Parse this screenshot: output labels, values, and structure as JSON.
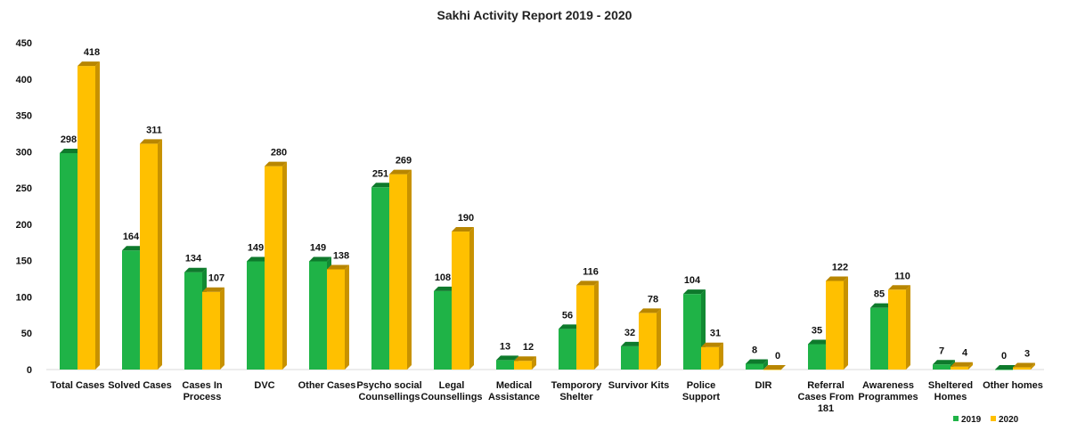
{
  "chart_data": {
    "type": "bar",
    "title": "Sakhi Activity Report 2019 - 2020",
    "xlabel": "",
    "ylabel": "",
    "ylim": [
      0,
      450
    ],
    "yticks": [
      0,
      50,
      100,
      150,
      200,
      250,
      300,
      350,
      400,
      450
    ],
    "grid": false,
    "legend_position": "bottom-right",
    "categories": [
      [
        "Total Cases"
      ],
      [
        "Solved Cases"
      ],
      [
        "Cases In",
        "Process"
      ],
      [
        "DVC"
      ],
      [
        "Other Cases"
      ],
      [
        "Psycho social",
        "Counsellings"
      ],
      [
        "Legal",
        "Counsellings"
      ],
      [
        "Medical",
        "Assistance"
      ],
      [
        "Temporory",
        "Shelter"
      ],
      [
        "Survivor Kits"
      ],
      [
        "Police",
        "Support"
      ],
      [
        "DIR"
      ],
      [
        "Referral",
        "Cases From",
        "181"
      ],
      [
        "Awareness",
        "Programmes"
      ],
      [
        "Sheltered",
        "Homes"
      ],
      [
        "Other homes"
      ]
    ],
    "series": [
      {
        "name": "2019",
        "color": "#1fb347",
        "side_color": "#128a33",
        "top_color": "#0e7a2c",
        "values": [
          298,
          164,
          134,
          149,
          149,
          251,
          108,
          13,
          56,
          32,
          104,
          8,
          35,
          85,
          7,
          0
        ]
      },
      {
        "name": "2020",
        "color": "#ffc000",
        "side_color": "#c89200",
        "top_color": "#b88600",
        "values": [
          418,
          311,
          107,
          280,
          138,
          269,
          190,
          12,
          116,
          78,
          31,
          0,
          122,
          110,
          4,
          3
        ]
      }
    ]
  }
}
